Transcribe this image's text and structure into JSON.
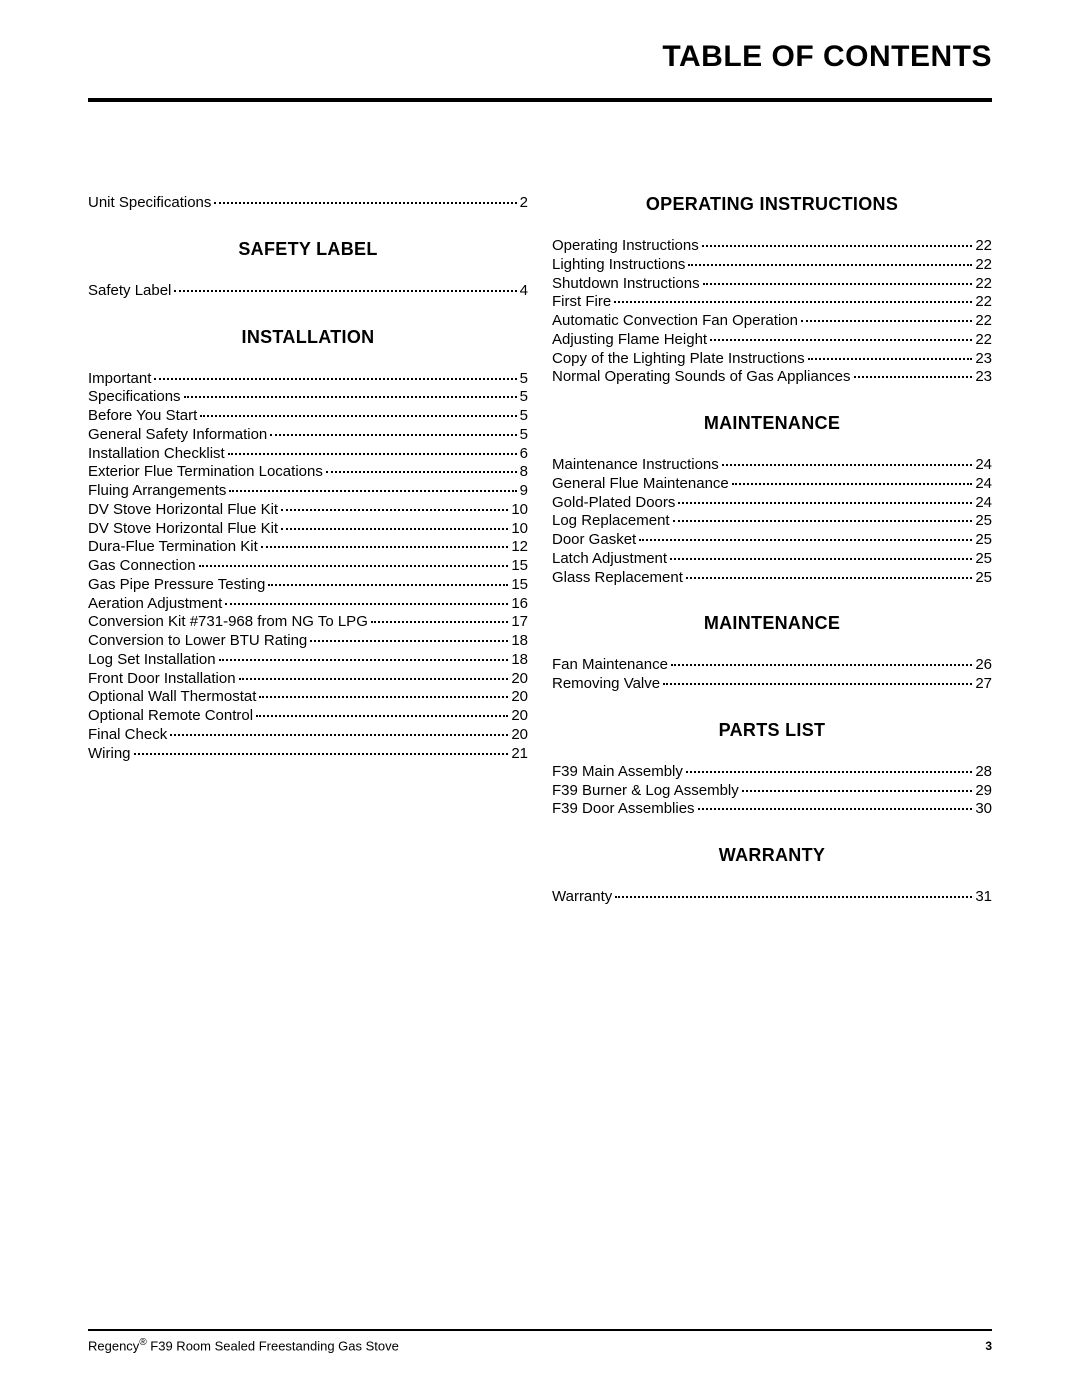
{
  "title": "TABLE OF CONTENTS",
  "footer": {
    "brand_prefix": "Regency",
    "brand_reg": "®",
    "brand_suffix": " F39 Room Sealed Freestanding Gas Stove",
    "page_number": "3"
  },
  "left_column": [
    {
      "type": "entry",
      "label": "Unit Specifications",
      "page": "2"
    },
    {
      "type": "heading",
      "text": "SAFETY LABEL"
    },
    {
      "type": "entry",
      "label": "Safety Label",
      "page": "4"
    },
    {
      "type": "heading",
      "text": "INSTALLATION"
    },
    {
      "type": "entry",
      "label": "Important",
      "page": "5"
    },
    {
      "type": "entry",
      "label": "Specifications",
      "page": "5"
    },
    {
      "type": "entry",
      "label": "Before You Start",
      "page": "5"
    },
    {
      "type": "entry",
      "label": "General Safety Information",
      "page": "5"
    },
    {
      "type": "entry",
      "label": "Installation Checklist",
      "page": "6"
    },
    {
      "type": "entry",
      "label": "Exterior Flue Termination Locations",
      "page": "8"
    },
    {
      "type": "entry",
      "label": "Fluing Arrangements",
      "page": "9"
    },
    {
      "type": "entry",
      "label": "DV Stove Horizontal Flue Kit",
      "page": "10"
    },
    {
      "type": "entry",
      "label": "DV Stove Horizontal Flue Kit",
      "page": "10"
    },
    {
      "type": "entry",
      "label": "Dura-Flue Termination Kit",
      "page": "12"
    },
    {
      "type": "entry",
      "label": "Gas Connection",
      "page": "15"
    },
    {
      "type": "entry",
      "label": "Gas Pipe Pressure Testing",
      "page": "15"
    },
    {
      "type": "entry",
      "label": "Aeration Adjustment",
      "page": "16"
    },
    {
      "type": "entry",
      "label": "Conversion Kit #731-968 from NG To LPG",
      "page": "17"
    },
    {
      "type": "entry",
      "label": "Conversion to Lower BTU Rating",
      "page": "18"
    },
    {
      "type": "entry",
      "label": "Log Set Installation",
      "page": "18"
    },
    {
      "type": "entry",
      "label": "Front Door Installation",
      "page": "20"
    },
    {
      "type": "entry",
      "label": "Optional Wall Thermostat",
      "page": "20"
    },
    {
      "type": "entry",
      "label": "Optional Remote Control",
      "page": "20"
    },
    {
      "type": "entry",
      "label": "Final Check",
      "page": "20"
    },
    {
      "type": "entry",
      "label": "Wiring",
      "page": "21"
    }
  ],
  "right_column": [
    {
      "type": "heading_first",
      "text": "OPERATING INSTRUCTIONS"
    },
    {
      "type": "entry",
      "label": "Operating Instructions",
      "page": "22"
    },
    {
      "type": "entry",
      "label": "Lighting Instructions",
      "page": "22"
    },
    {
      "type": "entry",
      "label": "Shutdown Instructions",
      "page": "22"
    },
    {
      "type": "entry",
      "label": "First Fire",
      "page": "22"
    },
    {
      "type": "entry",
      "label": "Automatic Convection Fan Operation",
      "page": "22"
    },
    {
      "type": "entry",
      "label": "Adjusting Flame Height",
      "page": "22"
    },
    {
      "type": "entry",
      "label": "Copy of the Lighting Plate Instructions",
      "page": "23"
    },
    {
      "type": "entry",
      "label": "Normal Operating Sounds of Gas Appliances",
      "page": "23"
    },
    {
      "type": "heading",
      "text": "MAINTENANCE"
    },
    {
      "type": "entry",
      "label": "Maintenance Instructions",
      "page": "24"
    },
    {
      "type": "entry",
      "label": "General Flue Maintenance",
      "page": "24"
    },
    {
      "type": "entry",
      "label": "Gold-Plated Doors",
      "page": "24"
    },
    {
      "type": "entry",
      "label": "Log Replacement",
      "page": "25"
    },
    {
      "type": "entry",
      "label": "Door Gasket",
      "page": "25"
    },
    {
      "type": "entry",
      "label": "Latch Adjustment",
      "page": "25"
    },
    {
      "type": "entry",
      "label": "Glass Replacement",
      "page": "25"
    },
    {
      "type": "heading",
      "text": "MAINTENANCE"
    },
    {
      "type": "entry",
      "label": "Fan Maintenance",
      "page": "26"
    },
    {
      "type": "entry",
      "label": "Removing Valve",
      "page": "27"
    },
    {
      "type": "heading",
      "text": "PARTS LIST"
    },
    {
      "type": "entry",
      "label": "F39 Main Assembly",
      "page": "28"
    },
    {
      "type": "entry",
      "label": "F39 Burner & Log Assembly",
      "page": "29"
    },
    {
      "type": "entry",
      "label": "F39 Door Assemblies",
      "page": "30"
    },
    {
      "type": "heading",
      "text": "WARRANTY"
    },
    {
      "type": "entry",
      "label": "Warranty",
      "page": "31"
    }
  ]
}
